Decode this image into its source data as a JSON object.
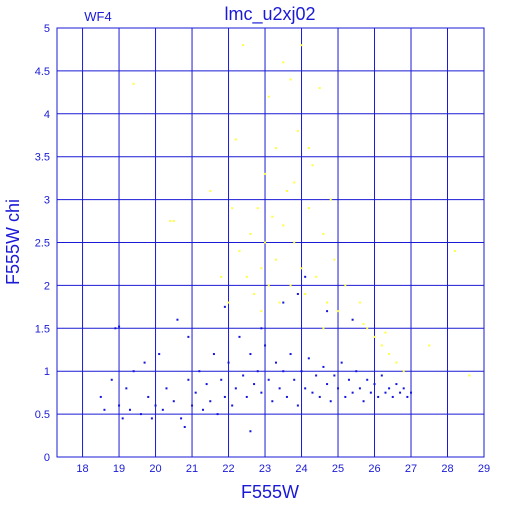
{
  "chart_data": {
    "type": "scatter",
    "title": "lmc_u2xj02",
    "panel_label": "WF4",
    "xlabel": "F555W",
    "ylabel": "F555W  chi",
    "xlim": [
      17.3,
      29.0
    ],
    "ylim": [
      0,
      5
    ],
    "x_ticks": [
      18,
      19,
      20,
      21,
      22,
      23,
      24,
      25,
      26,
      27,
      28,
      29
    ],
    "x_tick_labels": [
      "18",
      "19",
      "20",
      "21",
      "22",
      "23",
      "24",
      "25",
      "26",
      "27",
      "28",
      "29"
    ],
    "y_ticks": [
      0,
      0.5,
      1,
      1.5,
      2,
      2.5,
      3,
      3.5,
      4,
      4.5,
      5
    ],
    "y_tick_labels": [
      "0",
      "0.5",
      "1",
      "1.5",
      "2",
      "2.5",
      "3",
      "3.5",
      "4",
      "4.5",
      "5"
    ],
    "grid": true,
    "series": [
      {
        "color": "#ffff3c",
        "points": [
          [
            22.3,
            2.4
          ],
          [
            22.5,
            2.1
          ],
          [
            22.6,
            2.6
          ],
          [
            22.7,
            1.9
          ],
          [
            22.8,
            2.9
          ],
          [
            22.9,
            2.2
          ],
          [
            23.0,
            3.3
          ],
          [
            23.0,
            2.5
          ],
          [
            23.1,
            4.2
          ],
          [
            23.1,
            2.0
          ],
          [
            23.2,
            2.8
          ],
          [
            23.3,
            3.6
          ],
          [
            23.3,
            2.3
          ],
          [
            23.4,
            1.8
          ],
          [
            23.5,
            4.6
          ],
          [
            23.5,
            2.7
          ],
          [
            23.6,
            3.1
          ],
          [
            23.7,
            2.0
          ],
          [
            23.7,
            4.4
          ],
          [
            23.8,
            2.5
          ],
          [
            23.9,
            3.8
          ],
          [
            24.0,
            2.2
          ],
          [
            24.0,
            4.8
          ],
          [
            24.1,
            1.9
          ],
          [
            24.2,
            2.9
          ],
          [
            24.3,
            3.4
          ],
          [
            24.4,
            2.1
          ],
          [
            24.5,
            4.3
          ],
          [
            24.6,
            2.6
          ],
          [
            24.7,
            1.8
          ],
          [
            24.8,
            3.0
          ],
          [
            24.9,
            2.3
          ],
          [
            25.0,
            1.7
          ],
          [
            25.2,
            2.0
          ],
          [
            25.4,
            1.6
          ],
          [
            25.6,
            1.8
          ],
          [
            25.8,
            1.5
          ],
          [
            26.0,
            1.4
          ],
          [
            26.2,
            1.3
          ],
          [
            26.4,
            1.2
          ],
          [
            26.6,
            1.1
          ],
          [
            26.8,
            1.0
          ],
          [
            21.8,
            2.1
          ],
          [
            22.0,
            1.8
          ],
          [
            22.1,
            2.9
          ],
          [
            21.5,
            3.1
          ],
          [
            22.2,
            3.7
          ],
          [
            20.4,
            2.75
          ],
          [
            20.5,
            2.75
          ],
          [
            28.2,
            2.4
          ],
          [
            28.6,
            0.95
          ],
          [
            19.4,
            4.35
          ],
          [
            22.4,
            4.8
          ],
          [
            24.2,
            3.6
          ],
          [
            25.7,
            1.55
          ],
          [
            27.5,
            1.3
          ],
          [
            26.3,
            1.45
          ],
          [
            23.8,
            3.2
          ],
          [
            22.9,
            1.7
          ],
          [
            24.6,
            1.5
          ]
        ]
      },
      {
        "color": "#1515e0",
        "points": [
          [
            18.5,
            0.7
          ],
          [
            18.6,
            0.55
          ],
          [
            18.8,
            0.9
          ],
          [
            18.9,
            1.5
          ],
          [
            19.0,
            0.6
          ],
          [
            19.1,
            0.45
          ],
          [
            19.2,
            0.8
          ],
          [
            19.3,
            0.55
          ],
          [
            19.4,
            1.0
          ],
          [
            19.6,
            0.5
          ],
          [
            19.7,
            1.1
          ],
          [
            19.8,
            0.7
          ],
          [
            19.9,
            0.45
          ],
          [
            20.0,
            0.6
          ],
          [
            20.1,
            1.2
          ],
          [
            20.2,
            0.55
          ],
          [
            20.3,
            0.8
          ],
          [
            20.5,
            0.65
          ],
          [
            20.6,
            1.6
          ],
          [
            20.7,
            0.45
          ],
          [
            20.8,
            0.35
          ],
          [
            20.9,
            0.9
          ],
          [
            21.0,
            0.6
          ],
          [
            21.1,
            0.75
          ],
          [
            21.2,
            1.0
          ],
          [
            21.3,
            0.55
          ],
          [
            21.4,
            0.85
          ],
          [
            21.5,
            0.65
          ],
          [
            21.6,
            1.2
          ],
          [
            21.7,
            0.5
          ],
          [
            21.8,
            0.9
          ],
          [
            21.9,
            0.7
          ],
          [
            22.0,
            1.1
          ],
          [
            22.1,
            0.6
          ],
          [
            22.2,
            0.8
          ],
          [
            22.3,
            1.4
          ],
          [
            22.4,
            0.95
          ],
          [
            22.5,
            0.7
          ],
          [
            22.6,
            1.2
          ],
          [
            22.7,
            0.85
          ],
          [
            22.8,
            1.0
          ],
          [
            22.9,
            0.75
          ],
          [
            23.0,
            1.3
          ],
          [
            23.1,
            0.9
          ],
          [
            23.2,
            0.65
          ],
          [
            23.3,
            1.1
          ],
          [
            23.4,
            0.8
          ],
          [
            23.5,
            1.0
          ],
          [
            23.6,
            0.7
          ],
          [
            23.7,
            1.2
          ],
          [
            23.8,
            0.9
          ],
          [
            23.9,
            0.6
          ],
          [
            24.0,
            1.0
          ],
          [
            24.1,
            0.8
          ],
          [
            24.2,
            1.15
          ],
          [
            24.3,
            0.75
          ],
          [
            24.4,
            0.95
          ],
          [
            24.5,
            0.7
          ],
          [
            24.6,
            1.05
          ],
          [
            24.7,
            0.85
          ],
          [
            24.8,
            0.65
          ],
          [
            24.9,
            0.95
          ],
          [
            25.0,
            0.8
          ],
          [
            25.1,
            1.1
          ],
          [
            25.2,
            0.7
          ],
          [
            25.3,
            0.9
          ],
          [
            25.4,
            0.75
          ],
          [
            25.5,
            1.0
          ],
          [
            25.6,
            0.8
          ],
          [
            25.7,
            0.65
          ],
          [
            25.8,
            0.9
          ],
          [
            25.9,
            0.75
          ],
          [
            26.0,
            0.85
          ],
          [
            26.1,
            0.7
          ],
          [
            26.2,
            0.95
          ],
          [
            26.3,
            0.75
          ],
          [
            26.4,
            0.8
          ],
          [
            26.5,
            0.7
          ],
          [
            26.6,
            0.85
          ],
          [
            26.7,
            0.75
          ],
          [
            26.8,
            0.8
          ],
          [
            26.9,
            0.7
          ],
          [
            27.0,
            0.75
          ],
          [
            23.5,
            1.8
          ],
          [
            24.1,
            2.1
          ],
          [
            22.9,
            1.5
          ],
          [
            25.4,
            1.6
          ],
          [
            23.9,
            1.9
          ],
          [
            24.7,
            1.7
          ],
          [
            22.6,
            0.3
          ],
          [
            19.0,
            1.52
          ],
          [
            20.9,
            1.4
          ],
          [
            21.9,
            1.75
          ]
        ]
      }
    ]
  }
}
